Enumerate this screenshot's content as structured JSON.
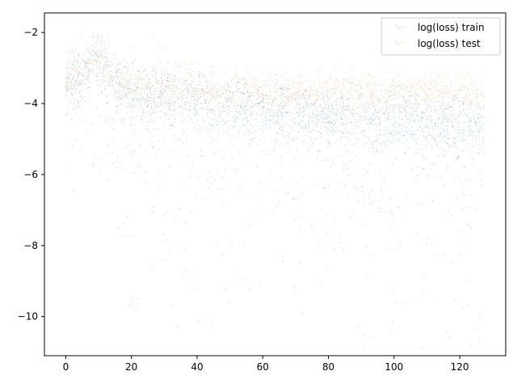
{
  "chart_data": {
    "type": "scatter",
    "title": "",
    "xlabel": "",
    "ylabel": "",
    "xlim": [
      -6.5,
      134
    ],
    "ylim": [
      -11.1,
      -1.45
    ],
    "x_ticks": [
      0,
      20,
      40,
      60,
      80,
      100,
      120
    ],
    "y_ticks": [
      -10,
      -8,
      -6,
      -4,
      -2
    ],
    "grid": false,
    "legend_position": "top-right",
    "series": [
      {
        "name": "log(loss) train",
        "color": "#1f77b4",
        "points_described_by_trend": [
          [
            0,
            -3.5
          ],
          [
            5,
            -3.2
          ],
          [
            10,
            -2.8
          ],
          [
            15,
            -3.4
          ],
          [
            20,
            -3.7
          ],
          [
            30,
            -3.8
          ],
          [
            40,
            -3.9
          ],
          [
            60,
            -4.1
          ],
          [
            80,
            -4.3
          ],
          [
            100,
            -4.4
          ],
          [
            120,
            -4.5
          ],
          [
            127.5,
            -4.5
          ]
        ]
      },
      {
        "name": "log(loss) test",
        "color": "#ff7f0e",
        "points_described_by_trend": [
          [
            0,
            -3.4
          ],
          [
            5,
            -3.1
          ],
          [
            10,
            -2.75
          ],
          [
            15,
            -3.3
          ],
          [
            20,
            -3.5
          ],
          [
            30,
            -3.6
          ],
          [
            40,
            -3.65
          ],
          [
            60,
            -3.7
          ],
          [
            80,
            -3.72
          ],
          [
            100,
            -3.73
          ],
          [
            120,
            -3.75
          ],
          [
            127.5,
            -3.75
          ]
        ]
      }
    ]
  }
}
